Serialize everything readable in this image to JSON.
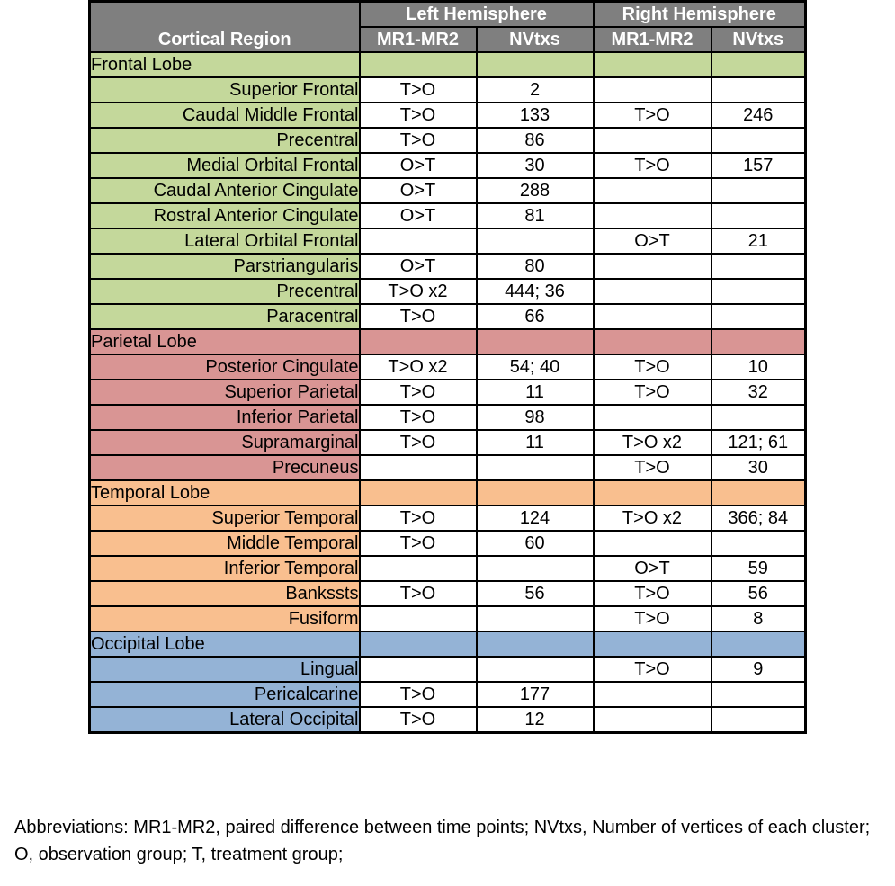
{
  "header": {
    "region_label": "Cortical Region",
    "left_hemisphere": "Left Hemisphere",
    "right_hemisphere": "Right Hemisphere",
    "col_mr": "MR1-MR2",
    "col_nv": "NVtxs"
  },
  "colors": {
    "header_gray": "#7f7f7f",
    "frontal_green": "#c4d89b",
    "parietal_red": "#d99594",
    "temporal_orange": "#f9bf8f",
    "occipital_blue": "#94b3d6"
  },
  "lobes": [
    {
      "name": "Frontal Lobe",
      "rows": [
        {
          "region": "Superior Frontal",
          "l_mr": "T>O",
          "l_nv": "2",
          "r_mr": "",
          "r_nv": ""
        },
        {
          "region": "Caudal Middle Frontal",
          "l_mr": "T>O",
          "l_nv": "133",
          "r_mr": "T>O",
          "r_nv": "246"
        },
        {
          "region": "Precentral",
          "l_mr": "T>O",
          "l_nv": "86",
          "r_mr": "",
          "r_nv": ""
        },
        {
          "region": "Medial Orbital Frontal",
          "l_mr": "O>T",
          "l_nv": "30",
          "r_mr": "T>O",
          "r_nv": "157"
        },
        {
          "region": "Caudal Anterior Cingulate",
          "l_mr": "O>T",
          "l_nv": "288",
          "r_mr": "",
          "r_nv": ""
        },
        {
          "region": "Rostral Anterior Cingulate",
          "l_mr": "O>T",
          "l_nv": "81",
          "r_mr": "",
          "r_nv": ""
        },
        {
          "region": "Lateral Orbital Frontal",
          "l_mr": "",
          "l_nv": "",
          "r_mr": "O>T",
          "r_nv": "21"
        },
        {
          "region": "Parstriangularis",
          "l_mr": "O>T",
          "l_nv": "80",
          "r_mr": "",
          "r_nv": ""
        },
        {
          "region": "Precentral",
          "l_mr": "T>O x2",
          "l_nv": "444; 36",
          "r_mr": "",
          "r_nv": ""
        },
        {
          "region": "Paracentral",
          "l_mr": "T>O",
          "l_nv": "66",
          "r_mr": "",
          "r_nv": ""
        }
      ]
    },
    {
      "name": "Parietal Lobe",
      "rows": [
        {
          "region": "Posterior Cingulate",
          "l_mr": "T>O x2",
          "l_nv": "54; 40",
          "r_mr": "T>O",
          "r_nv": "10"
        },
        {
          "region": "Superior Parietal",
          "l_mr": "T>O",
          "l_nv": "11",
          "r_mr": "T>O",
          "r_nv": "32"
        },
        {
          "region": "Inferior Parietal",
          "l_mr": "T>O",
          "l_nv": "98",
          "r_mr": "",
          "r_nv": ""
        },
        {
          "region": "Supramarginal",
          "l_mr": "T>O",
          "l_nv": "11",
          "r_mr": "T>O x2",
          "r_nv": "121; 61"
        },
        {
          "region": "Precuneus",
          "l_mr": "",
          "l_nv": "",
          "r_mr": "T>O",
          "r_nv": "30"
        }
      ]
    },
    {
      "name": "Temporal Lobe",
      "rows": [
        {
          "region": "Superior Temporal",
          "l_mr": "T>O",
          "l_nv": "124",
          "r_mr": "T>O x2",
          "r_nv": "366; 84"
        },
        {
          "region": "Middle Temporal",
          "l_mr": "T>O",
          "l_nv": "60",
          "r_mr": "",
          "r_nv": ""
        },
        {
          "region": "Inferior Temporal",
          "l_mr": "",
          "l_nv": "",
          "r_mr": "O>T",
          "r_nv": "59"
        },
        {
          "region": "Bankssts",
          "l_mr": "T>O",
          "l_nv": "56",
          "r_mr": "T>O",
          "r_nv": "56"
        },
        {
          "region": "Fusiform",
          "l_mr": "",
          "l_nv": "",
          "r_mr": "T>O",
          "r_nv": "8"
        }
      ]
    },
    {
      "name": "Occipital Lobe",
      "rows": [
        {
          "region": "Lingual",
          "l_mr": "",
          "l_nv": "",
          "r_mr": "T>O",
          "r_nv": "9"
        },
        {
          "region": "Pericalcarine",
          "l_mr": "T>O",
          "l_nv": "177",
          "r_mr": "",
          "r_nv": ""
        },
        {
          "region": "Lateral Occipital",
          "l_mr": "T>O",
          "l_nv": "12",
          "r_mr": "",
          "r_nv": ""
        }
      ]
    }
  ],
  "footnote": "Abbreviations: MR1-MR2, paired difference between time points; NVtxs, Number of vertices of each cluster; O, observation group; T, treatment group;"
}
